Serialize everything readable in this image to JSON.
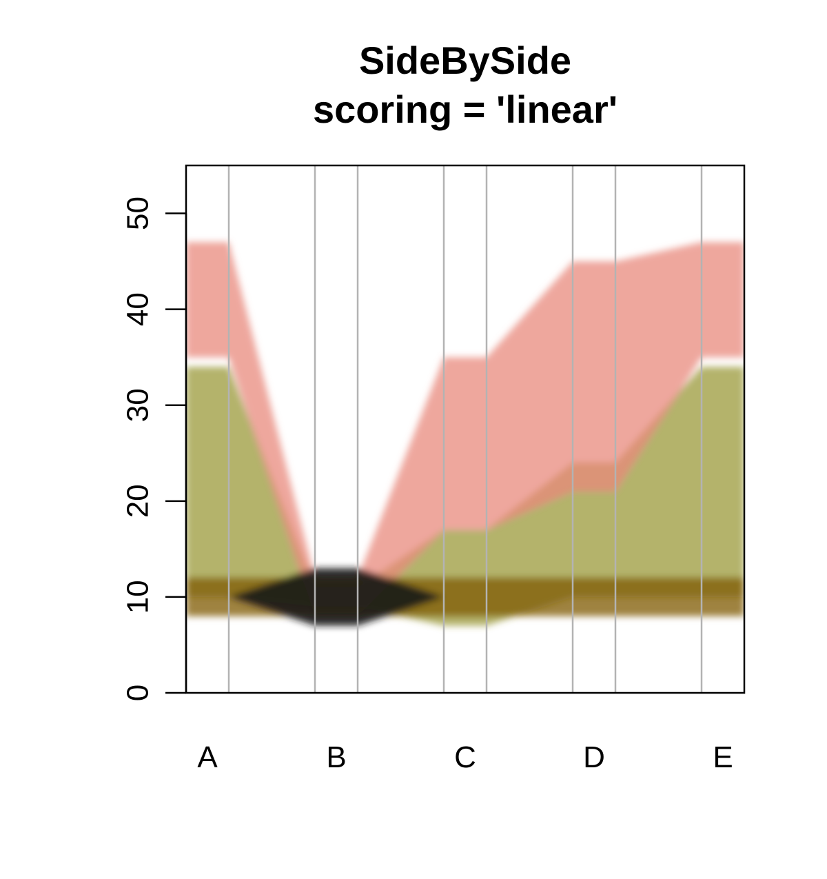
{
  "chart_data": {
    "type": "area",
    "title": "SideBySide",
    "subtitle": "scoring = 'linear'",
    "xlabel": "",
    "ylabel": "",
    "categories": [
      "A",
      "B",
      "C",
      "D",
      "E"
    ],
    "ylim": [
      0,
      55
    ],
    "yticks": [
      0,
      10,
      20,
      30,
      40,
      50
    ],
    "grid": false,
    "legend": "none",
    "series": [
      {
        "color": "#7f5a05",
        "center": [
          10,
          10,
          10,
          10,
          10
        ],
        "half_width": [
          2,
          2,
          2,
          2,
          2
        ]
      },
      {
        "color": "#e8897c",
        "center": [
          41,
          10,
          26,
          33,
          41
        ],
        "half_width": [
          6,
          2,
          9,
          12,
          6
        ]
      },
      {
        "color": "#9b9a3a",
        "center": [
          22,
          10,
          12,
          17,
          22
        ],
        "half_width": [
          12,
          1,
          5,
          7,
          12
        ]
      },
      {
        "color": "#1a1a1a",
        "center": [
          10,
          10,
          10,
          10,
          10
        ],
        "half_width": [
          0,
          3,
          0,
          0,
          0
        ]
      }
    ]
  }
}
